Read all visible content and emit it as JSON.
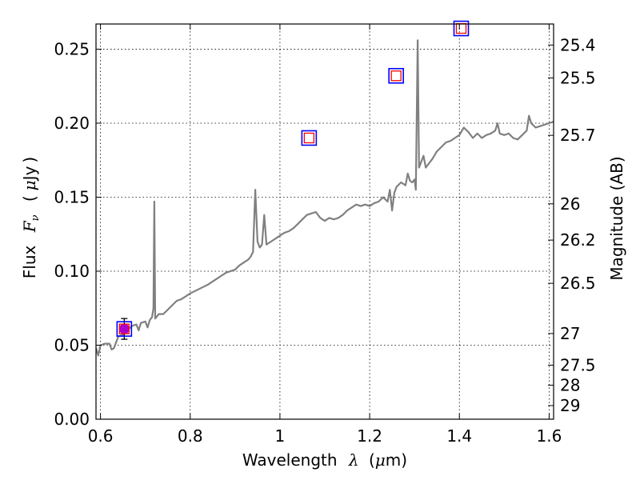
{
  "chart_data": {
    "type": "line",
    "xlabel": {
      "pre": "Wavelength",
      "symbol": "λ",
      "open": "(",
      "unit_mu": "μ",
      "unit_rest": "m",
      "close": ")"
    },
    "ylabel": {
      "pre": "Flux",
      "symbol": "F",
      "sub": "ν",
      "open": "(",
      "unit_mu": "μ",
      "unit_rest": "Jy",
      "close": ")"
    },
    "y2label": "Magnitude (AB)",
    "xlim": [
      0.59,
      1.61
    ],
    "ylim": [
      0.0,
      0.267
    ],
    "grid": true,
    "x_ticks": [
      0.6,
      0.8,
      1.0,
      1.2,
      1.4,
      1.6
    ],
    "x_tick_labels": [
      "0.6",
      "0.8",
      "1",
      "1.2",
      "1.4",
      "1.6"
    ],
    "y_ticks": [
      0.0,
      0.05,
      0.1,
      0.15,
      0.2,
      0.25
    ],
    "y_tick_labels": [
      "0.00",
      "0.05",
      "0.10",
      "0.15",
      "0.20",
      "0.25"
    ],
    "mag_ticks": [
      {
        "label": "25.4",
        "flux": 0.2528
      },
      {
        "label": "25.5",
        "flux": 0.2306
      },
      {
        "label": "25.7",
        "flux": 0.1918
      },
      {
        "label": "26",
        "flux": 0.1455
      },
      {
        "label": "26.2",
        "flux": 0.121
      },
      {
        "label": "26.5",
        "flux": 0.0918
      },
      {
        "label": "27",
        "flux": 0.0579
      },
      {
        "label": "27.5",
        "flux": 0.0365
      },
      {
        "label": "28",
        "flux": 0.023
      },
      {
        "label": "29",
        "flux": 0.0092
      }
    ],
    "series": [
      {
        "style": "spectrum",
        "color": "#808080",
        "points": [
          [
            0.59,
            0.048
          ],
          [
            0.595,
            0.043
          ],
          [
            0.6,
            0.05
          ],
          [
            0.61,
            0.051
          ],
          [
            0.62,
            0.051
          ],
          [
            0.625,
            0.047
          ],
          [
            0.63,
            0.048
          ],
          [
            0.64,
            0.056
          ],
          [
            0.65,
            0.057
          ],
          [
            0.66,
            0.06
          ],
          [
            0.67,
            0.063
          ],
          [
            0.68,
            0.064
          ],
          [
            0.685,
            0.06
          ],
          [
            0.69,
            0.065
          ],
          [
            0.7,
            0.066
          ],
          [
            0.705,
            0.062
          ],
          [
            0.71,
            0.067
          ],
          [
            0.715,
            0.069
          ],
          [
            0.718,
            0.075
          ],
          [
            0.72,
            0.147
          ],
          [
            0.722,
            0.068
          ],
          [
            0.73,
            0.071
          ],
          [
            0.74,
            0.071
          ],
          [
            0.75,
            0.074
          ],
          [
            0.76,
            0.077
          ],
          [
            0.77,
            0.08
          ],
          [
            0.78,
            0.081
          ],
          [
            0.79,
            0.083
          ],
          [
            0.8,
            0.085
          ],
          [
            0.82,
            0.088
          ],
          [
            0.84,
            0.091
          ],
          [
            0.86,
            0.095
          ],
          [
            0.87,
            0.097
          ],
          [
            0.88,
            0.099
          ],
          [
            0.9,
            0.101
          ],
          [
            0.91,
            0.104
          ],
          [
            0.92,
            0.106
          ],
          [
            0.93,
            0.108
          ],
          [
            0.935,
            0.11
          ],
          [
            0.94,
            0.113
          ],
          [
            0.945,
            0.155
          ],
          [
            0.95,
            0.12
          ],
          [
            0.955,
            0.116
          ],
          [
            0.96,
            0.118
          ],
          [
            0.965,
            0.138
          ],
          [
            0.97,
            0.118
          ],
          [
            0.98,
            0.12
          ],
          [
            0.99,
            0.122
          ],
          [
            1.0,
            0.124
          ],
          [
            1.01,
            0.126
          ],
          [
            1.02,
            0.127
          ],
          [
            1.03,
            0.129
          ],
          [
            1.04,
            0.132
          ],
          [
            1.05,
            0.135
          ],
          [
            1.06,
            0.138
          ],
          [
            1.07,
            0.139
          ],
          [
            1.08,
            0.14
          ],
          [
            1.09,
            0.136
          ],
          [
            1.1,
            0.134
          ],
          [
            1.11,
            0.136
          ],
          [
            1.12,
            0.135
          ],
          [
            1.13,
            0.136
          ],
          [
            1.14,
            0.138
          ],
          [
            1.15,
            0.141
          ],
          [
            1.16,
            0.143
          ],
          [
            1.17,
            0.145
          ],
          [
            1.18,
            0.144
          ],
          [
            1.19,
            0.145
          ],
          [
            1.2,
            0.144
          ],
          [
            1.21,
            0.146
          ],
          [
            1.22,
            0.147
          ],
          [
            1.23,
            0.15
          ],
          [
            1.24,
            0.147
          ],
          [
            1.245,
            0.155
          ],
          [
            1.25,
            0.141
          ],
          [
            1.255,
            0.153
          ],
          [
            1.26,
            0.157
          ],
          [
            1.27,
            0.16
          ],
          [
            1.28,
            0.158
          ],
          [
            1.285,
            0.166
          ],
          [
            1.29,
            0.161
          ],
          [
            1.295,
            0.16
          ],
          [
            1.3,
            0.162
          ],
          [
            1.303,
            0.155
          ],
          [
            1.307,
            0.256
          ],
          [
            1.31,
            0.17
          ],
          [
            1.32,
            0.178
          ],
          [
            1.325,
            0.17
          ],
          [
            1.33,
            0.172
          ],
          [
            1.34,
            0.176
          ],
          [
            1.35,
            0.181
          ],
          [
            1.36,
            0.184
          ],
          [
            1.37,
            0.187
          ],
          [
            1.38,
            0.188
          ],
          [
            1.39,
            0.19
          ],
          [
            1.4,
            0.192
          ],
          [
            1.41,
            0.197
          ],
          [
            1.42,
            0.194
          ],
          [
            1.43,
            0.19
          ],
          [
            1.44,
            0.193
          ],
          [
            1.45,
            0.19
          ],
          [
            1.46,
            0.192
          ],
          [
            1.47,
            0.193
          ],
          [
            1.48,
            0.195
          ],
          [
            1.485,
            0.2
          ],
          [
            1.49,
            0.193
          ],
          [
            1.5,
            0.192
          ],
          [
            1.51,
            0.193
          ],
          [
            1.52,
            0.19
          ],
          [
            1.53,
            0.189
          ],
          [
            1.54,
            0.192
          ],
          [
            1.55,
            0.195
          ],
          [
            1.555,
            0.205
          ],
          [
            1.56,
            0.2
          ],
          [
            1.57,
            0.197
          ],
          [
            1.58,
            0.198
          ],
          [
            1.59,
            0.199
          ],
          [
            1.6,
            0.2
          ],
          [
            1.61,
            0.201
          ]
        ]
      }
    ],
    "markers": [
      {
        "x": 0.653,
        "y": 0.061,
        "kind": "circle-with-square",
        "yerr": 0.007
      },
      {
        "x": 1.065,
        "y": 0.19,
        "kind": "square"
      },
      {
        "x": 1.259,
        "y": 0.232,
        "kind": "square"
      },
      {
        "x": 1.404,
        "y": 0.264,
        "kind": "square"
      }
    ],
    "marker_colors": {
      "outer": "#0000ff",
      "inner": "#ff0000",
      "circle": "#aa00cc"
    }
  }
}
